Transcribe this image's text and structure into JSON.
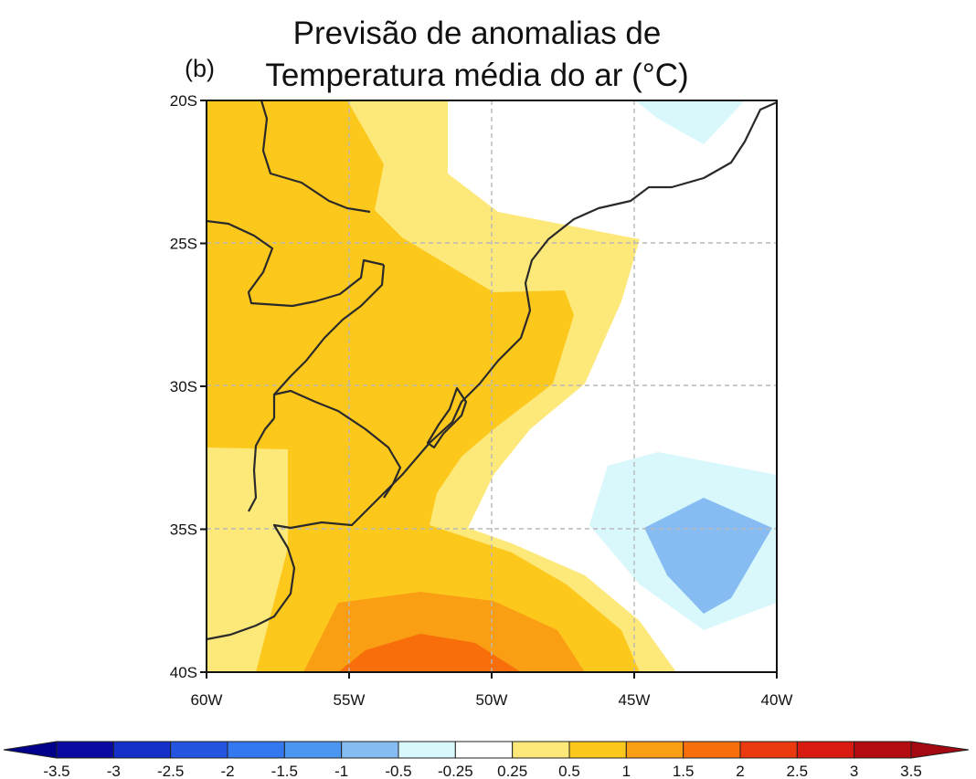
{
  "title": {
    "line1": "Previsão de anomalias de",
    "line2": "Temperatura média do ar (°C)"
  },
  "panel_label": "(b)",
  "map": {
    "lat_ticks": [
      "20S",
      "25S",
      "30S",
      "35S",
      "40S"
    ],
    "lon_ticks": [
      "60W",
      "55W",
      "50W",
      "45W",
      "40W"
    ],
    "lat_range": [
      -40,
      -20
    ],
    "lon_range": [
      -60,
      -40
    ],
    "grid": true
  },
  "colorbar": {
    "labels": [
      "-3.5",
      "-3",
      "-2.5",
      "-2",
      "-1.5",
      "-1",
      "-0.5",
      "-0.25",
      "0.25",
      "0.5",
      "1",
      "1.5",
      "2",
      "2.5",
      "3",
      "3.5"
    ],
    "colors": [
      "#0a0aa0",
      "#1530c8",
      "#2455e0",
      "#3478f0",
      "#4b96f0",
      "#86bcf2",
      "#d8f8fc",
      "#ffffff",
      "#fde87a",
      "#fdc81c",
      "#fa9e14",
      "#f76e0a",
      "#ec3a10",
      "#d81a10",
      "#b40c10"
    ],
    "low_color": "#00008b",
    "high_color": "#a40810"
  },
  "anomaly_colors": {
    "pos_025_05": "#fde87a",
    "pos_05_1": "#fdc81c",
    "pos_1_15": "#fa9e14",
    "pos_15_2": "#f76e0a",
    "neg_025_05": "#d8f8fc",
    "neg_05_1": "#86bcf2",
    "neutral": "#ffffff"
  }
}
